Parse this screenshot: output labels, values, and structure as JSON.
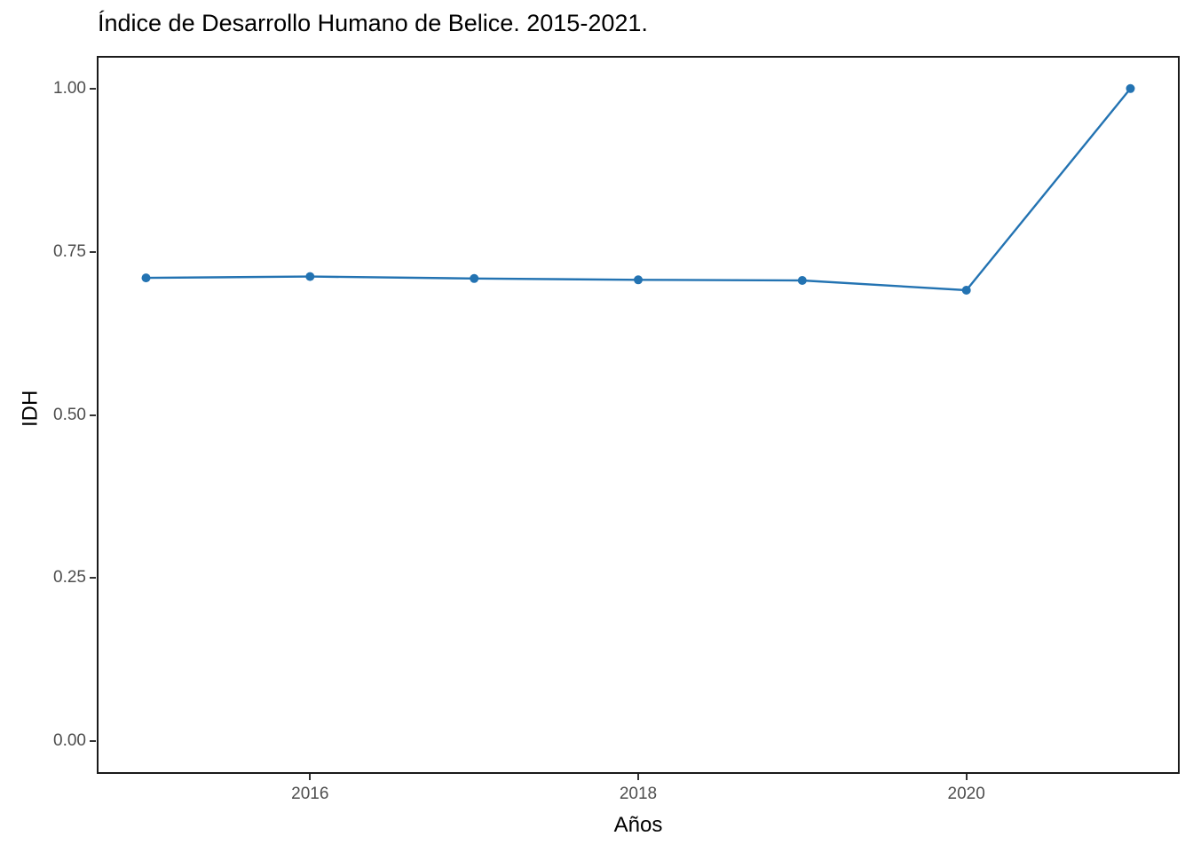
{
  "chart_data": {
    "type": "line",
    "title": "Índice de Desarrollo Humano de Belice. 2015-2021.",
    "xlabel": "Años",
    "ylabel": "IDH",
    "x": [
      2015,
      2016,
      2017,
      2018,
      2019,
      2020,
      2021
    ],
    "values": [
      0.71,
      0.712,
      0.709,
      0.707,
      0.706,
      0.691,
      1.0
    ],
    "x_tick_labels": [
      "2016",
      "2018",
      "2020"
    ],
    "x_tick_values": [
      2016,
      2018,
      2020
    ],
    "y_tick_labels": [
      "1.00",
      "0.75",
      "0.50",
      "0.25",
      "0.00"
    ],
    "y_tick_values": [
      1.0,
      0.75,
      0.5,
      0.25,
      0.0
    ],
    "xlim": [
      2014.7,
      2021.3
    ],
    "ylim": [
      -0.05,
      1.05
    ],
    "grid": "off",
    "legend": "none",
    "colors": {
      "line": "#2373b2",
      "point": "#2373b2",
      "panel_border": "#1a1a1a",
      "tick_label": "#4d4d4d",
      "axis_title": "#000000",
      "title": "#000000",
      "background": "#ffffff"
    }
  }
}
